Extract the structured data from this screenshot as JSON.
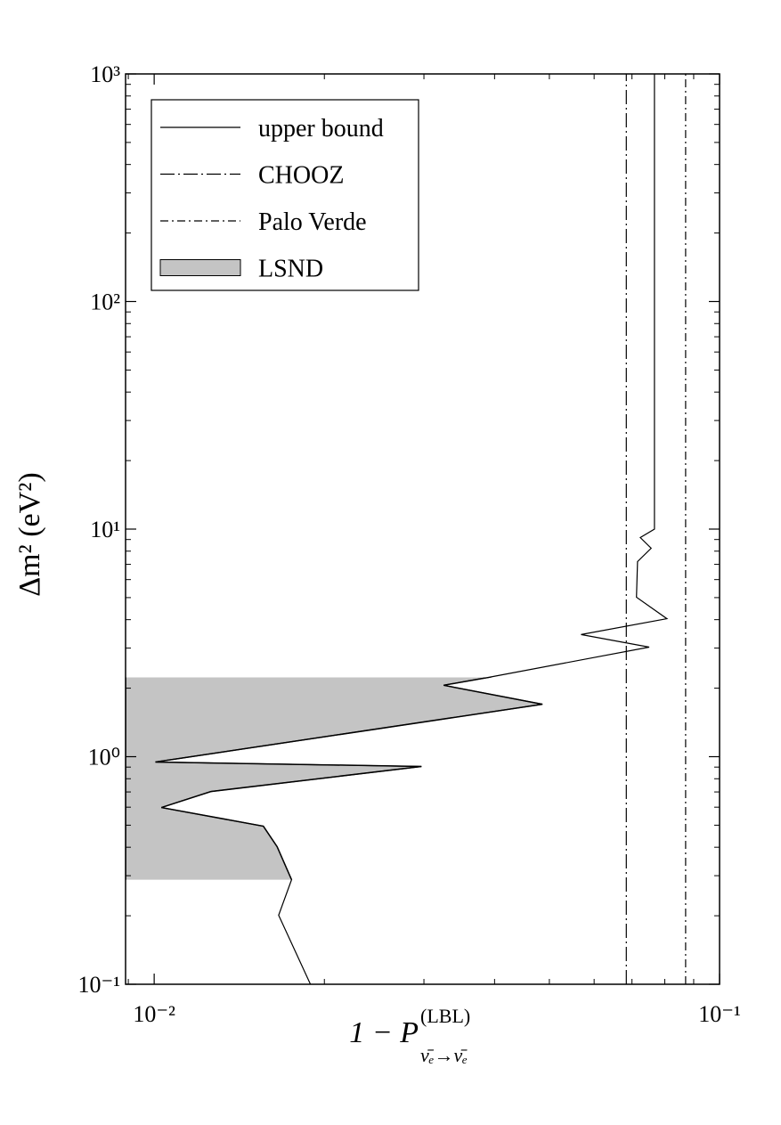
{
  "chart_data": {
    "type": "line",
    "x_label": {
      "text": "1 − P",
      "superscript": "(LBL)",
      "subscript": "ν̄ₑ→ν̄ₑ"
    },
    "y_label": "Δm² (eV²)",
    "xscale": "log",
    "yscale": "log",
    "xlim": [
      0.0089,
      0.1
    ],
    "ylim": [
      0.1,
      1000
    ],
    "xticks": [
      {
        "value": 0.01,
        "label": "10⁻²"
      },
      {
        "value": 0.1,
        "label": "10⁻¹"
      }
    ],
    "yticks": [
      {
        "value": 0.1,
        "label": "10⁻¹"
      },
      {
        "value": 1,
        "label": "10⁰"
      },
      {
        "value": 10,
        "label": "10¹"
      },
      {
        "value": 100,
        "label": "10²"
      },
      {
        "value": 1000,
        "label": "10³"
      }
    ],
    "xminor_ticks": [
      0.009,
      0.02,
      0.03,
      0.04,
      0.05,
      0.06,
      0.07,
      0.08,
      0.09
    ],
    "yminor_ticks": [
      0.2,
      0.3,
      0.4,
      0.5,
      0.6,
      0.7,
      0.8,
      0.9,
      2,
      3,
      4,
      5,
      6,
      7,
      8,
      9,
      20,
      30,
      40,
      50,
      60,
      70,
      80,
      90,
      200,
      300,
      400,
      500,
      600,
      700,
      800,
      900
    ],
    "legend": "upper left",
    "series": [
      {
        "name": "upper bound",
        "color": "#000000",
        "style": "solid",
        "x": [
          0.0767,
          0.0767,
          0.0724,
          0.0757,
          0.0716,
          0.0713,
          0.0807,
          0.0569,
          0.0751,
          0.039,
          0.0325,
          0.0486,
          0.01005,
          0.0297,
          0.0126,
          0.0103,
          0.0156,
          0.0165,
          0.0175,
          0.0166,
          0.0189
        ],
        "y": [
          1000,
          10,
          9.18,
          8.24,
          7.2,
          5.02,
          4.04,
          3.44,
          3.03,
          2.23,
          2.06,
          1.7,
          0.947,
          0.906,
          0.703,
          0.598,
          0.495,
          0.402,
          0.288,
          0.201,
          0.1
        ]
      },
      {
        "name": "CHOOZ",
        "color": "#000000",
        "style": "dashdot-long",
        "x": [
          0.0684,
          0.0684
        ],
        "y": [
          0.1,
          1000
        ]
      },
      {
        "name": "Palo Verde",
        "color": "#000000",
        "style": "dashdot",
        "x": [
          0.0871,
          0.0871
        ],
        "y": [
          0.1,
          1000
        ]
      },
      {
        "name": "LSND",
        "color": "#c4c4c4",
        "style": "region",
        "y_range": [
          0.288,
          2.23
        ]
      }
    ]
  }
}
